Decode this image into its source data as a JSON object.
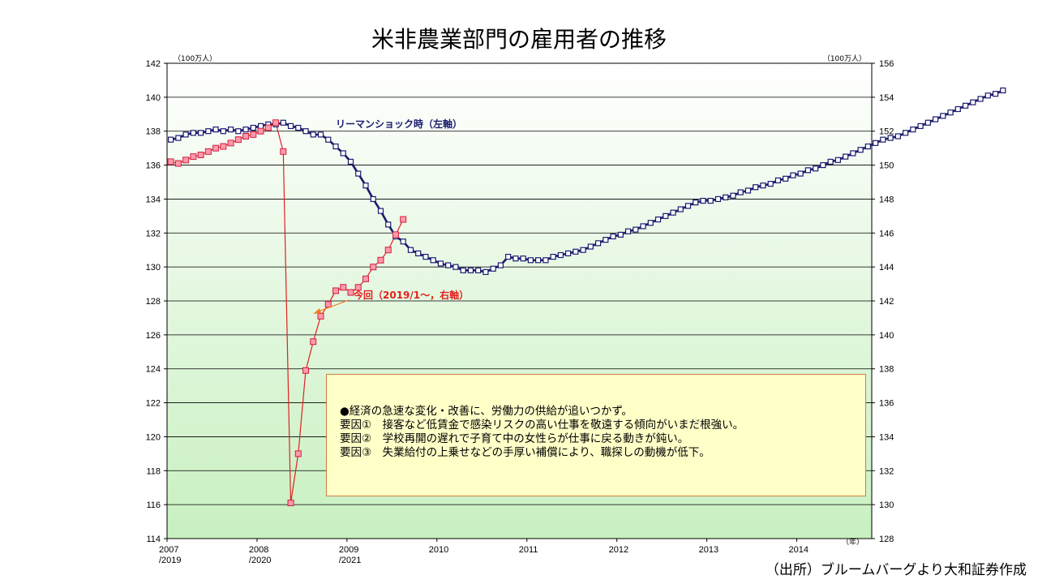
{
  "chart_data": {
    "type": "line",
    "title": "米非農業部門の雇用者の推移",
    "y_left_unit": "（100万人）",
    "y_right_unit": "（100万人）",
    "x_unit": "（年）",
    "y_left_range": [
      114,
      142
    ],
    "y_right_range": [
      128,
      156
    ],
    "y_left_ticks": [
      "114",
      "116",
      "118",
      "120",
      "122",
      "124",
      "126",
      "128",
      "130",
      "132",
      "134",
      "136",
      "138",
      "140",
      "142"
    ],
    "y_right_ticks": [
      "128",
      "130",
      "132",
      "134",
      "136",
      "138",
      "140",
      "142",
      "144",
      "146",
      "148",
      "150",
      "152",
      "154",
      "156"
    ],
    "x_months_span": 94,
    "x_tick_labels": [
      {
        "month": 0,
        "line1": "2007",
        "line2": "/2019"
      },
      {
        "month": 12,
        "line1": "2008",
        "line2": "/2020"
      },
      {
        "month": 24,
        "line1": "2009",
        "line2": "/2021"
      },
      {
        "month": 36,
        "line1": "2010",
        "line2": ""
      },
      {
        "month": 48,
        "line1": "2011",
        "line2": ""
      },
      {
        "month": 60,
        "line1": "2012",
        "line2": ""
      },
      {
        "month": 72,
        "line1": "2013",
        "line2": ""
      },
      {
        "month": 84,
        "line1": "2014",
        "line2": ""
      }
    ],
    "series": [
      {
        "name": "リーマンショック時（左軸）",
        "axis": "left",
        "color": "#1a1a6e",
        "start": "2007-01",
        "values": [
          137.5,
          137.6,
          137.8,
          137.9,
          137.9,
          138.0,
          138.1,
          138.0,
          138.1,
          138.0,
          138.1,
          138.2,
          138.3,
          138.4,
          138.4,
          138.5,
          138.3,
          138.2,
          138.0,
          137.8,
          137.8,
          137.5,
          137.1,
          136.7,
          136.2,
          135.5,
          134.8,
          134.0,
          133.3,
          132.5,
          131.8,
          131.5,
          131.0,
          130.8,
          130.6,
          130.4,
          130.2,
          130.1,
          130.0,
          129.8,
          129.8,
          129.8,
          129.7,
          129.9,
          130.1,
          130.6,
          130.5,
          130.5,
          130.4,
          130.4,
          130.4,
          130.6,
          130.7,
          130.8,
          130.9,
          131.0,
          131.2,
          131.4,
          131.6,
          131.8,
          131.9,
          132.1,
          132.2,
          132.4,
          132.6,
          132.8,
          133.0,
          133.2,
          133.4,
          133.6,
          133.8,
          133.9,
          133.9,
          134.0,
          134.1,
          134.2,
          134.4,
          134.5,
          134.7,
          134.8,
          134.9,
          135.1,
          135.2,
          135.4,
          135.5,
          135.7,
          135.8,
          136.0,
          136.2,
          136.3,
          136.5,
          136.7,
          136.9,
          137.1,
          137.3,
          137.5,
          137.6,
          137.7,
          137.9,
          138.1,
          138.3,
          138.5,
          138.7,
          138.9,
          139.1,
          139.3,
          139.5,
          139.7,
          139.9,
          140.1,
          140.2,
          140.4
        ]
      },
      {
        "name": "今回（2019/1～，右軸）",
        "axis": "right",
        "color": "#e02020",
        "start": "2019-01",
        "values": [
          150.2,
          150.1,
          150.3,
          150.5,
          150.6,
          150.8,
          151.0,
          151.1,
          151.3,
          151.5,
          151.7,
          151.8,
          152.0,
          152.2,
          152.5,
          150.8,
          130.1,
          133.0,
          137.9,
          139.6,
          141.1,
          141.8,
          142.6,
          142.8,
          142.5,
          142.8,
          143.3,
          144.0,
          144.4,
          145.0,
          145.9,
          146.8
        ]
      }
    ],
    "series_labels": {
      "lehman": "リーマンショック時（左軸）",
      "current": "今回（2019/1～，右軸）"
    }
  },
  "note": {
    "lines": [
      "●経済の急速な変化・改善に、労働力の供給が追いつかず。",
      "要因①　接客など低賃金で感染リスクの高い仕事を敬遠する傾向がいまだ根強い。",
      "要因②　学校再開の遅れで子育て中の女性らが仕事に戻る動きが鈍い。",
      "要因③　失業給付の上乗せなどの手厚い補償により、職探しの動機が低下。"
    ]
  },
  "source": "（出所）ブルームバーグより大和証券作成"
}
